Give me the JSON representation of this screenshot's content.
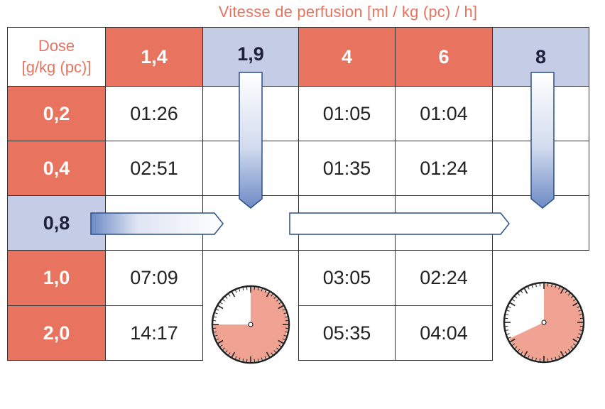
{
  "title": "Vitesse de perfusion [ml / kg (pc) / h]",
  "dose_header": {
    "line1": "Dose",
    "line2": "[g/kg (pc)]"
  },
  "rates": [
    "1,4",
    "1,9",
    "4",
    "6",
    "8"
  ],
  "doses": [
    "0,2",
    "0,4",
    "0,8",
    "1,0",
    "2,0"
  ],
  "rows": [
    {
      "dose": "0,2",
      "values": [
        "01:26",
        "",
        "01:05",
        "01:04",
        ""
      ]
    },
    {
      "dose": "0,4",
      "values": [
        "02:51",
        "",
        "01:35",
        "01:24",
        ""
      ]
    },
    {
      "dose": "0,8",
      "values": [
        "",
        "",
        "",
        "",
        ""
      ]
    },
    {
      "dose": "1,0",
      "values": [
        "07:09",
        "",
        "03:05",
        "02:24",
        ""
      ]
    },
    {
      "dose": "2,0",
      "values": [
        "14:17",
        "",
        "05:35",
        "04:04",
        ""
      ]
    }
  ],
  "colors": {
    "accent_red": "#e8735f",
    "accent_blue": "#c5cce6",
    "arrow_border": "#2b4f8c"
  },
  "icons": [
    "down-arrow-icon",
    "right-arrow-icon",
    "clock-icon"
  ],
  "clocks": [
    {
      "column": "1,9",
      "shaded_fraction": 0.75
    },
    {
      "column": "8",
      "shaded_fraction": 0.68
    }
  ]
}
